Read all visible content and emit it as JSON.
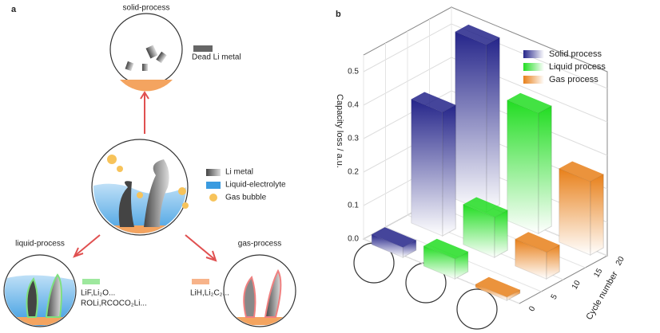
{
  "panel_a": {
    "label": "a",
    "solid_process": "solid-process",
    "dead_li": "Dead Li metal",
    "legend": [
      "Li metal",
      "Liquid-electrolyte",
      "Gas bubble"
    ],
    "liquid_process": "liquid-process",
    "liquid_products": [
      "LiF,Li₂O...",
      "ROLi,RCOCO₂Li..."
    ],
    "gas_process": "gas-process",
    "gas_products": [
      "LiH,Li₂C₂..."
    ]
  },
  "chart_data": {
    "type": "bar3d",
    "panel_label": "b",
    "y_label": "Capacity loss / a.u.",
    "z_label": "Cycle number",
    "z": [
      1,
      10,
      20
    ],
    "zlim": [
      0,
      20
    ],
    "zticks": [
      0,
      5,
      10,
      15,
      20
    ],
    "ylim": [
      0,
      0.55
    ],
    "yticks": [
      {
        "value": 0,
        "label": "0.0"
      },
      0.1,
      0.2,
      0.3,
      0.4,
      0.5
    ],
    "grid": true,
    "legend_position": "upper right",
    "series": [
      {
        "name": "Solid process",
        "color": "#25258a",
        "values": [
          0.03,
          0.37,
          0.5
        ]
      },
      {
        "name": "Liquid process",
        "color": "#22dd22",
        "values": [
          0.06,
          0.12,
          0.36
        ]
      },
      {
        "name": "Gas process",
        "color": "#e8801a",
        "values": [
          0.01,
          0.08,
          0.22
        ]
      }
    ]
  }
}
